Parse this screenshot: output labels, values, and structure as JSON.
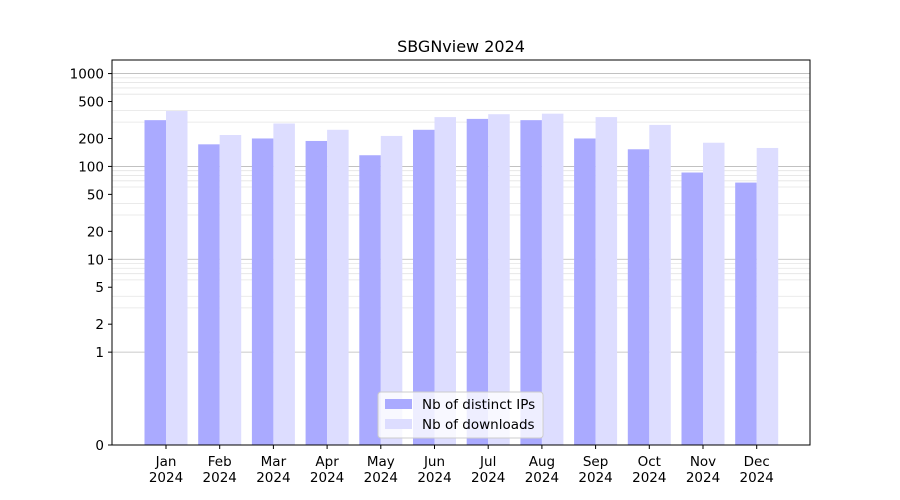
{
  "chart_data": {
    "type": "bar",
    "title": "SBGNview 2024",
    "xlabel": "",
    "ylabel": "",
    "y_scale": "symlog",
    "ylim": [
      0,
      1400
    ],
    "yticks": [
      0,
      1,
      2,
      5,
      10,
      20,
      50,
      100,
      200,
      500,
      1000
    ],
    "ytick_labels": [
      "0",
      "1",
      "2",
      "5",
      "10",
      "20",
      "50",
      "100",
      "200",
      "500",
      "1000"
    ],
    "grid": "horizontal",
    "legend_position": "lower-center",
    "categories": [
      [
        "Jan",
        "2024"
      ],
      [
        "Feb",
        "2024"
      ],
      [
        "Mar",
        "2024"
      ],
      [
        "Apr",
        "2024"
      ],
      [
        "May",
        "2024"
      ],
      [
        "Jun",
        "2024"
      ],
      [
        "Jul",
        "2024"
      ],
      [
        "Aug",
        "2024"
      ],
      [
        "Sep",
        "2024"
      ],
      [
        "Oct",
        "2024"
      ],
      [
        "Nov",
        "2024"
      ],
      [
        "Dec",
        "2024"
      ]
    ],
    "series": [
      {
        "name": "Nb of distinct IPs",
        "color": "#aaaaff",
        "values": [
          315,
          173,
          200,
          188,
          132,
          248,
          325,
          315,
          200,
          153,
          86,
          67
        ]
      },
      {
        "name": "Nb of downloads",
        "color": "#ddddff",
        "values": [
          395,
          218,
          290,
          248,
          213,
          340,
          365,
          370,
          340,
          280,
          180,
          158
        ]
      }
    ]
  }
}
